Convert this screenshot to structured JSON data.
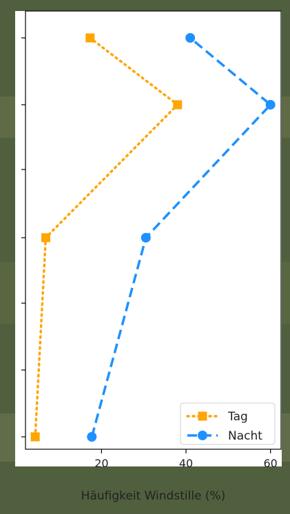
{
  "chart_data": {
    "type": "line",
    "orientation": "horizontal-values",
    "xlabel": "Häufigkeit Windstille (%)",
    "ylabel": "",
    "title": "",
    "xlim": [
      2,
      62.5
    ],
    "xticks": [
      20,
      40,
      60
    ],
    "y_positions": [
      0,
      1,
      2,
      3,
      4,
      5,
      6
    ],
    "y_tick_labels_shown": false,
    "grid": false,
    "legend_position": "lower-right",
    "series": [
      {
        "name": "Tag",
        "color": "#ffa500",
        "line_style": "dotted",
        "marker": "square",
        "points": [
          {
            "x": 4.3,
            "y": 0
          },
          {
            "x": 6.8,
            "y": 3
          },
          {
            "x": 38,
            "y": 5
          },
          {
            "x": 17.3,
            "y": 6
          }
        ]
      },
      {
        "name": "Nacht",
        "color": "#1e90ff",
        "line_style": "dashed",
        "marker": "circle",
        "points": [
          {
            "x": 17.7,
            "y": 0
          },
          {
            "x": 30.5,
            "y": 3
          },
          {
            "x": 60,
            "y": 5
          },
          {
            "x": 41,
            "y": 6
          }
        ]
      }
    ]
  }
}
